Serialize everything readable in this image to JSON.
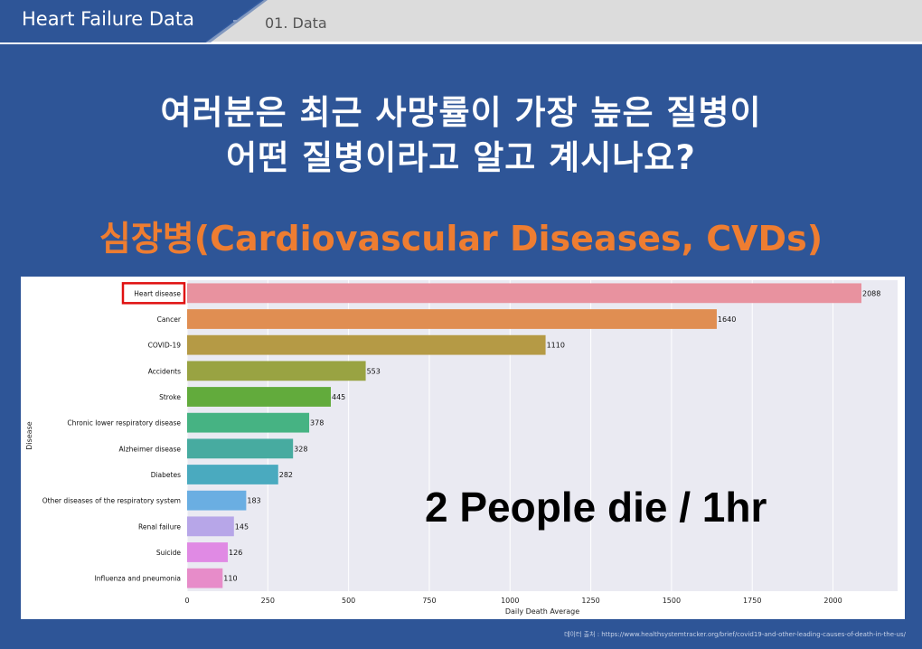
{
  "header": {
    "title": "Heart Failure Data",
    "section": "01. Data"
  },
  "headline": {
    "line1": "여러분은 최근 사망률이 가장 높은 질병이",
    "line2": "어떤 질병이라고 알고 계시나요?"
  },
  "answer": "심장병(Cardiovascular Diseases, CVDs)",
  "overlay": "2 People die / 1hr",
  "source": "데이터 출처 : https://www.healthsystemtracker.org/brief/covid19-and-other-leading-causes-of-death-in-the-us/",
  "chart_data": {
    "type": "bar",
    "orientation": "horizontal",
    "categories": [
      "Heart disease",
      "Cancer",
      "COVID-19",
      "Accidents",
      "Stroke",
      "Chronic lower respiratory disease",
      "Alzheimer disease",
      "Diabetes",
      "Other diseases of the respiratory system",
      "Renal failure",
      "Suicide",
      "Influenza and pneumonia"
    ],
    "values": [
      2088,
      1640,
      1110,
      553,
      445,
      378,
      328,
      282,
      183,
      145,
      126,
      110
    ],
    "colors": [
      "#e8929f",
      "#e08e52",
      "#b59a45",
      "#99a342",
      "#62ab3c",
      "#46b383",
      "#47aba0",
      "#4aaabf",
      "#6aaee2",
      "#b7a6e8",
      "#e08ae4",
      "#e78cc9"
    ],
    "xlabel": "Daily Death Average",
    "ylabel": "Disease",
    "xticks": [
      0,
      250,
      500,
      750,
      1000,
      1250,
      1500,
      1750,
      2000
    ],
    "xlim": [
      0,
      2200
    ],
    "grid": true,
    "highlight": "Heart disease",
    "highlight_color": "#e01010"
  }
}
